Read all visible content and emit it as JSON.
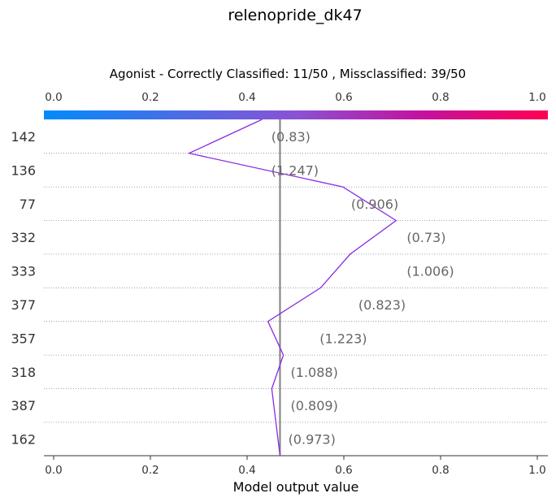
{
  "chart_data": {
    "type": "line",
    "title": "relenopride_dk47",
    "subtitle": "Agonist - Correctly Classified: 11/50 , Missclassified: 39/50",
    "xlabel": "Model output value",
    "xlim": [
      0.0,
      1.0
    ],
    "xticks": [
      "0.0",
      "0.2",
      "0.4",
      "0.6",
      "0.8",
      "1.0"
    ],
    "base_value": 0.468,
    "colormap": [
      "#008bfb",
      "#ff0052"
    ],
    "line_color": "#8a2be2",
    "rows": [
      {
        "label": "142",
        "annotation": "(0.83)"
      },
      {
        "label": "136",
        "annotation": "(1.247)"
      },
      {
        "label": "77",
        "annotation": "(0.906)"
      },
      {
        "label": "332",
        "annotation": "(0.73)"
      },
      {
        "label": "333",
        "annotation": "(1.006)"
      },
      {
        "label": "377",
        "annotation": "(0.823)"
      },
      {
        "label": "357",
        "annotation": "(1.223)"
      },
      {
        "label": "318",
        "annotation": "(1.088)"
      },
      {
        "label": "387",
        "annotation": "(0.809)"
      },
      {
        "label": "162",
        "annotation": "(0.973)"
      }
    ],
    "path_values": [
      0.431,
      0.28,
      0.598,
      0.708,
      0.613,
      0.552,
      0.443,
      0.475,
      0.451,
      0.468
    ],
    "annotation_values": [
      0.45,
      0.45,
      0.615,
      0.73,
      0.73,
      0.63,
      0.55,
      0.49,
      0.49,
      0.485
    ],
    "grid": "dotted horizontal"
  }
}
